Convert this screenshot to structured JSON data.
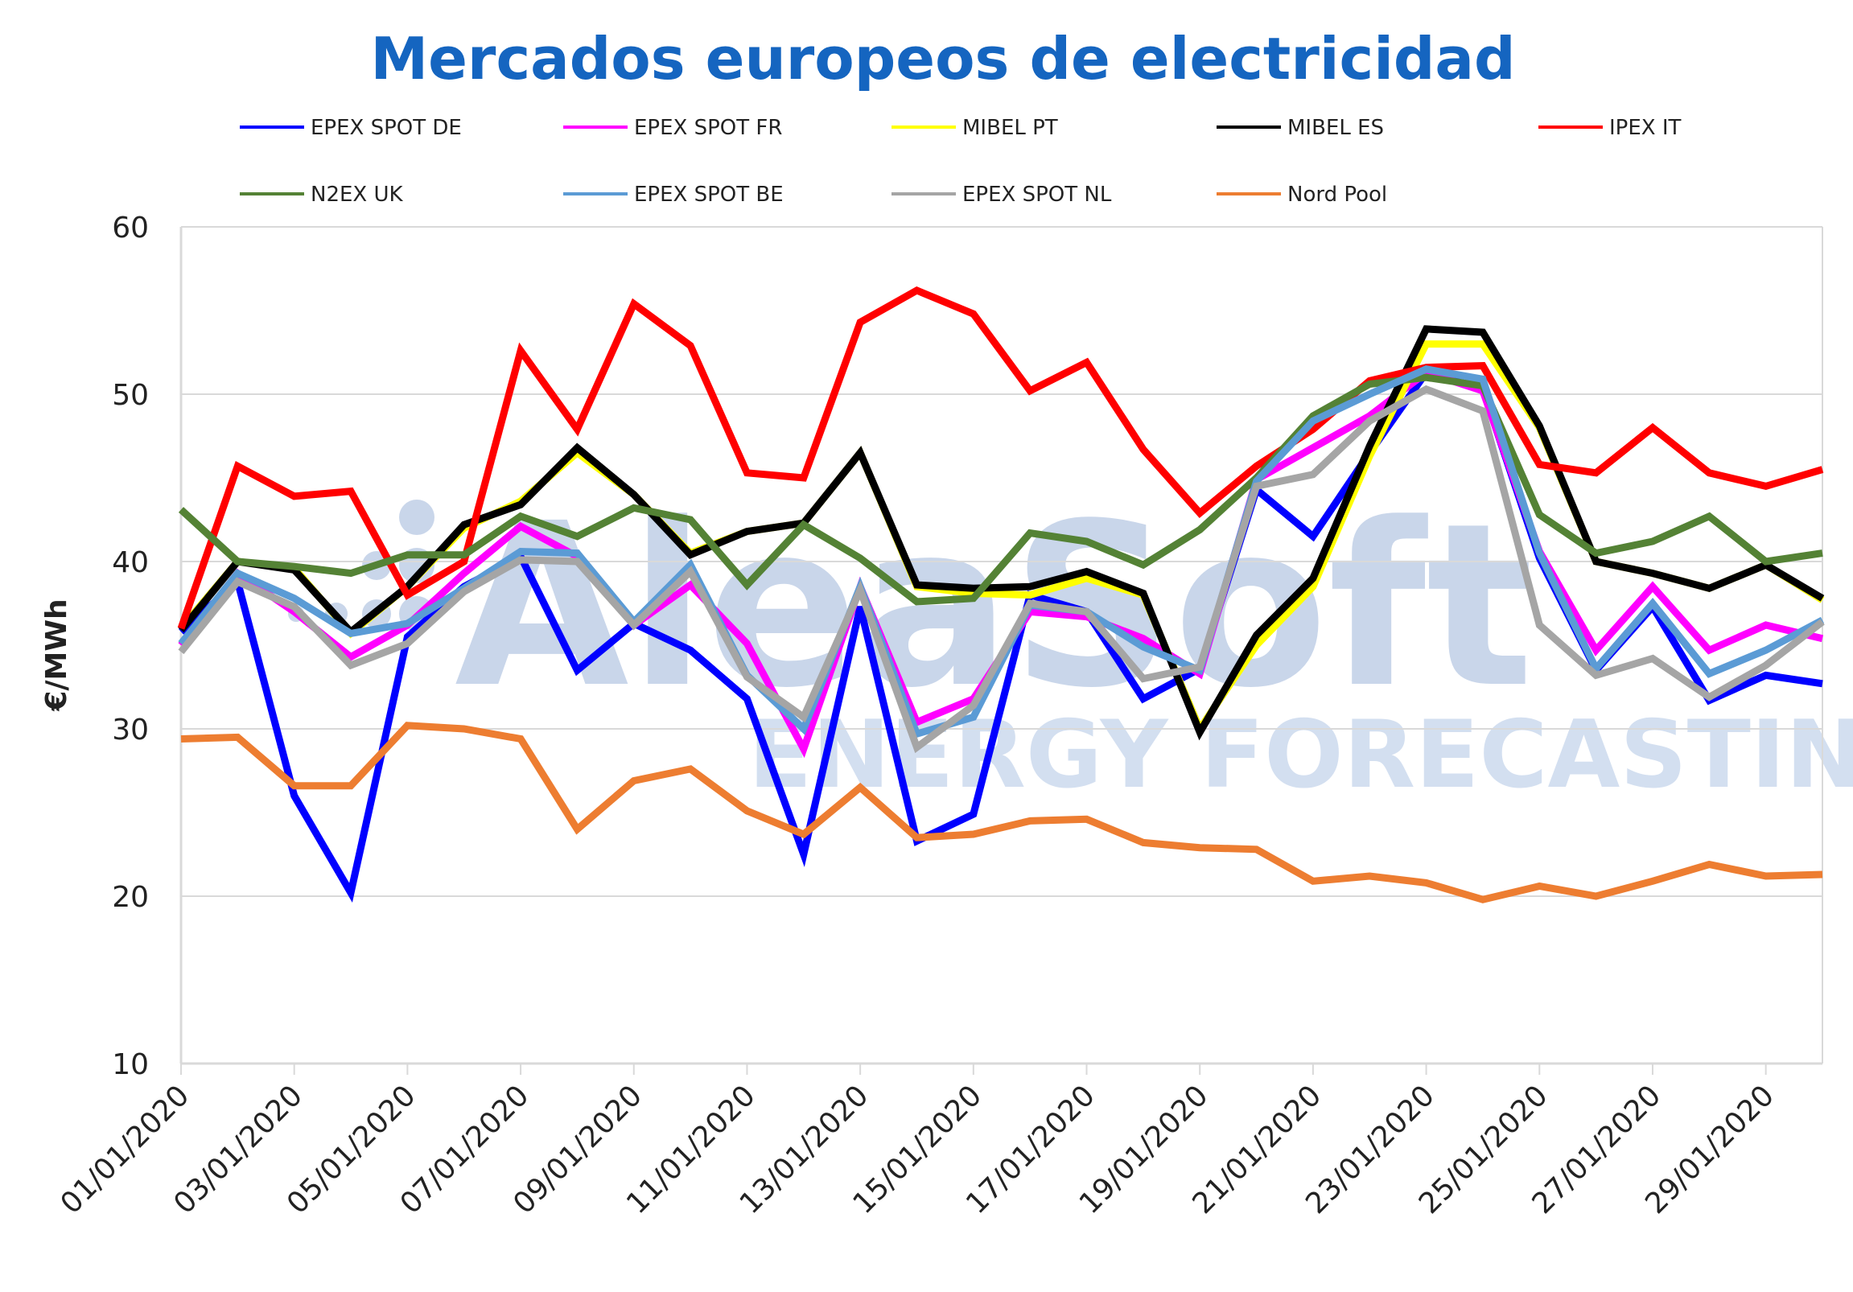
{
  "chart_data": {
    "type": "line",
    "title": "Mercados europeos de electricidad",
    "ylabel": "€/MWh",
    "xlabel": "",
    "ylim": [
      10,
      60
    ],
    "yticks": [
      10,
      20,
      30,
      40,
      50,
      60
    ],
    "grid": "horizontal",
    "legend_position": "top",
    "watermark": {
      "brand": "AleaSoft",
      "tagline": "ENERGY FORECASTING"
    },
    "x": [
      "01/01/2020",
      "02/01/2020",
      "03/01/2020",
      "04/01/2020",
      "05/01/2020",
      "06/01/2020",
      "07/01/2020",
      "08/01/2020",
      "09/01/2020",
      "10/01/2020",
      "11/01/2020",
      "12/01/2020",
      "13/01/2020",
      "14/01/2020",
      "15/01/2020",
      "16/01/2020",
      "17/01/2020",
      "18/01/2020",
      "19/01/2020",
      "20/01/2020",
      "21/01/2020",
      "22/01/2020",
      "23/01/2020",
      "24/01/2020",
      "25/01/2020",
      "26/01/2020",
      "27/01/2020",
      "28/01/2020",
      "29/01/2020",
      "30/01/2020"
    ],
    "x_tick_labels": [
      "01/01/2020",
      "03/01/2020",
      "05/01/2020",
      "07/01/2020",
      "09/01/2020",
      "11/01/2020",
      "13/01/2020",
      "15/01/2020",
      "17/01/2020",
      "19/01/2020",
      "21/01/2020",
      "23/01/2020",
      "25/01/2020",
      "27/01/2020",
      "29/01/2020"
    ],
    "series": [
      {
        "name": "EPEX SPOT DE",
        "color": "#0000ff",
        "values": [
          35.8,
          38.8,
          26.0,
          20.2,
          35.5,
          38.5,
          40.3,
          33.5,
          36.3,
          34.7,
          31.8,
          22.5,
          37.3,
          23.3,
          24.9,
          38.0,
          37.0,
          31.8,
          33.6,
          44.3,
          41.5,
          46.5,
          51.3,
          50.3,
          40.2,
          33.5,
          37.3,
          31.7,
          33.2,
          32.7
        ]
      },
      {
        "name": "EPEX SPOT FR",
        "color": "#ff00ff",
        "values": [
          35.0,
          39.3,
          37.0,
          34.3,
          36.2,
          39.3,
          42.1,
          40.3,
          36.2,
          38.6,
          35.1,
          28.8,
          38.5,
          30.4,
          31.8,
          37.0,
          36.7,
          35.4,
          33.3,
          44.9,
          46.8,
          48.7,
          51.3,
          50.2,
          40.6,
          34.7,
          38.5,
          34.7,
          36.2,
          35.4
        ]
      },
      {
        "name": "MIBEL PT",
        "color": "#ffff00",
        "values": [
          36.0,
          40.0,
          39.6,
          35.7,
          38.5,
          42.0,
          43.6,
          46.5,
          44.0,
          40.5,
          41.8,
          42.3,
          46.5,
          38.5,
          38.1,
          38.0,
          39.0,
          38.0,
          30.0,
          35.0,
          38.5,
          46.3,
          53.0,
          53.0,
          48.0,
          40.0,
          39.3,
          38.4,
          39.8,
          37.7
        ]
      },
      {
        "name": "MIBEL ES",
        "color": "#000000",
        "values": [
          35.9,
          40.0,
          39.5,
          35.8,
          38.5,
          42.2,
          43.4,
          46.8,
          44.0,
          40.4,
          41.8,
          42.3,
          46.5,
          38.6,
          38.4,
          38.5,
          39.4,
          38.1,
          29.8,
          35.6,
          39.0,
          46.9,
          53.9,
          53.7,
          48.1,
          40.0,
          39.3,
          38.4,
          39.8,
          37.8
        ]
      },
      {
        "name": "IPEX IT",
        "color": "#ff0000",
        "values": [
          36.0,
          45.7,
          43.9,
          44.2,
          38.0,
          40.0,
          52.6,
          47.9,
          55.4,
          52.9,
          45.3,
          45.0,
          54.3,
          56.2,
          54.8,
          50.2,
          51.9,
          46.7,
          42.9,
          45.7,
          47.9,
          50.8,
          51.6,
          51.7,
          45.8,
          45.3,
          48.0,
          45.3,
          44.5,
          45.5
        ]
      },
      {
        "name": "N2EX UK",
        "color": "#548235",
        "values": [
          43.1,
          40.0,
          39.7,
          39.3,
          40.4,
          40.4,
          42.7,
          41.5,
          43.2,
          42.5,
          38.6,
          42.2,
          40.2,
          37.6,
          37.8,
          41.7,
          41.2,
          39.8,
          41.9,
          45.0,
          48.7,
          50.6,
          51.0,
          50.5,
          42.8,
          40.5,
          41.2,
          42.7,
          40.0,
          40.5
        ]
      },
      {
        "name": "EPEX SPOT BE",
        "color": "#5b9bd5",
        "values": [
          35.1,
          39.3,
          37.8,
          35.7,
          36.3,
          38.4,
          40.6,
          40.5,
          36.4,
          39.8,
          33.2,
          30.0,
          38.5,
          29.7,
          30.7,
          37.4,
          37.0,
          34.9,
          33.5,
          44.8,
          48.4,
          50.0,
          51.5,
          50.9,
          40.5,
          33.6,
          37.5,
          33.3,
          34.7,
          36.5
        ]
      },
      {
        "name": "EPEX SPOT NL",
        "color": "#a5a5a5",
        "values": [
          34.6,
          38.8,
          37.3,
          33.8,
          35.1,
          38.2,
          40.1,
          40.0,
          36.2,
          39.4,
          33.1,
          30.7,
          38.3,
          28.9,
          31.4,
          37.5,
          37.0,
          33.0,
          33.7,
          44.5,
          45.2,
          48.4,
          50.3,
          49.0,
          36.2,
          33.2,
          34.2,
          31.9,
          33.8,
          36.4
        ]
      },
      {
        "name": "Nord Pool",
        "color": "#ed7d31",
        "values": [
          29.4,
          29.5,
          26.6,
          26.6,
          30.2,
          30.0,
          29.4,
          24.0,
          26.9,
          27.6,
          25.1,
          23.7,
          26.5,
          23.5,
          23.7,
          24.5,
          24.6,
          23.2,
          22.9,
          22.8,
          20.9,
          21.2,
          20.8,
          19.8,
          20.6,
          20.0,
          20.9,
          21.9,
          21.2,
          21.3
        ]
      }
    ]
  }
}
